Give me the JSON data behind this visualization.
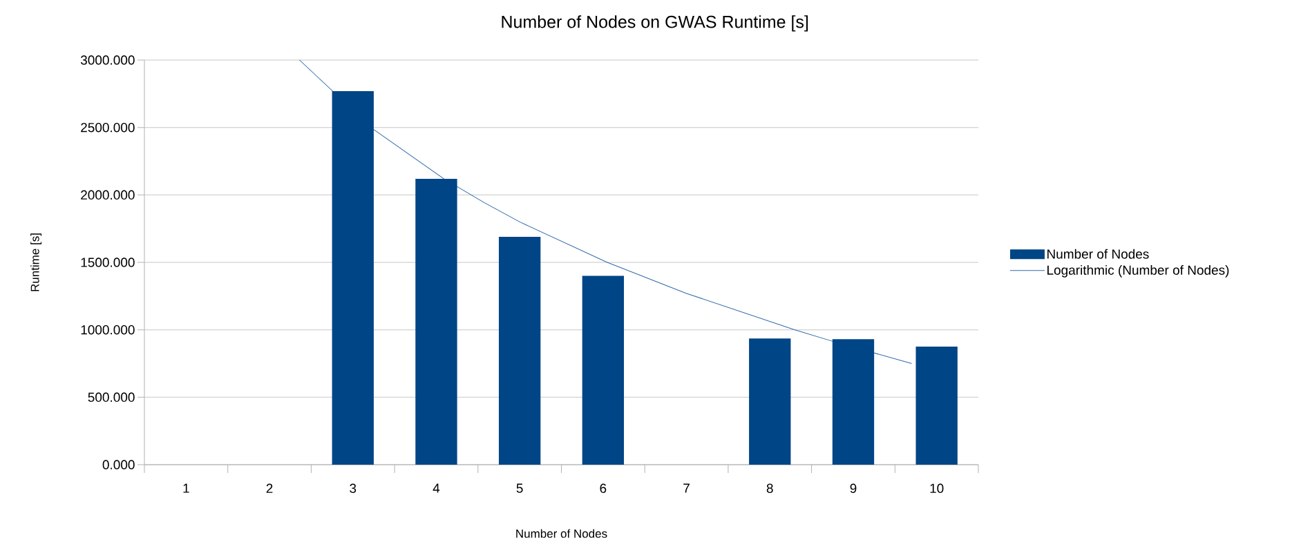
{
  "chart_data": {
    "type": "bar",
    "title": "Number of Nodes on GWAS Runtime [s]",
    "xlabel": "Number of Nodes",
    "ylabel": "Runtime [s]",
    "series": [
      {
        "name": "Number of Nodes",
        "color": "#004586",
        "x": [
          3,
          4,
          5,
          6,
          8,
          9,
          10
        ],
        "values": [
          2770,
          2120,
          1690,
          1400,
          935,
          930,
          875
        ]
      },
      {
        "name": "Logarithmic (Number of Nodes)",
        "type": "line",
        "color": "#2e6aa8",
        "x": [
          2.36,
          3.25,
          4.09,
          4.57,
          5,
          6.05,
          7,
          8.3,
          8.74,
          9.7
        ],
        "values": [
          3000,
          2485,
          2120,
          1945,
          1800,
          1500,
          1270,
          1000,
          917,
          750
        ]
      }
    ],
    "xlim": [
      0.5,
      10.5
    ],
    "xticks": [
      1,
      2,
      3,
      4,
      5,
      6,
      7,
      8,
      9,
      10
    ],
    "ylim": [
      0,
      3000
    ],
    "yticks": [
      {
        "value": 0,
        "label": "0.000"
      },
      {
        "value": 500,
        "label": "500.000"
      },
      {
        "value": 1000,
        "label": "1000.000"
      },
      {
        "value": 1500,
        "label": "1500.000"
      },
      {
        "value": 2000,
        "label": "2000.000"
      },
      {
        "value": 2500,
        "label": "2500.000"
      },
      {
        "value": 3000,
        "label": "3000.000"
      }
    ],
    "grid": "y",
    "legend": "right",
    "marker": "none",
    "line_style": "solid"
  }
}
